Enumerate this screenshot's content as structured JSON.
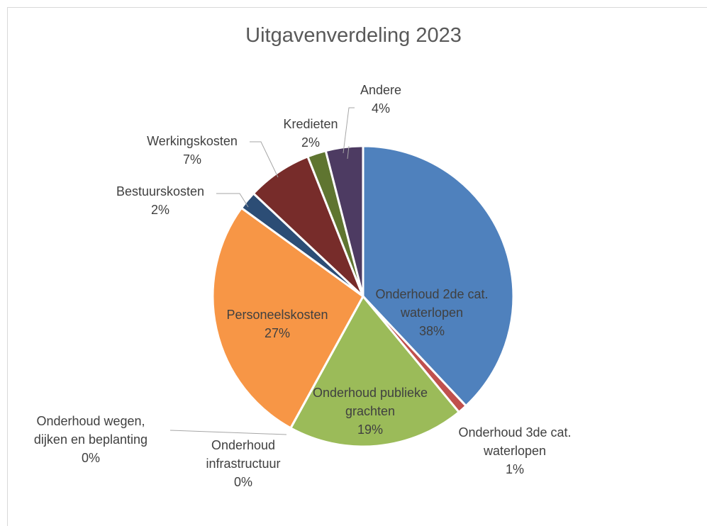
{
  "chart_data": {
    "type": "pie",
    "title": "Uitgavenverdeling 2023",
    "categories": [
      "Onderhoud 2de cat. waterlopen",
      "Onderhoud 3de cat. waterlopen",
      "Onderhoud publieke grachten",
      "Onderhoud infrastructuur",
      "Onderhoud wegen, dijken en beplanting",
      "Personeelskosten",
      "Bestuurskosten",
      "Werkingskosten",
      "Kredieten",
      "Andere"
    ],
    "values": [
      38,
      1,
      19,
      0,
      0,
      27,
      2,
      7,
      2,
      4
    ],
    "value_labels": [
      "38%",
      "1%",
      "19%",
      "0%",
      "0%",
      "27%",
      "2%",
      "7%",
      "2%",
      "4%"
    ],
    "colors": [
      "#4f81bd",
      "#c0504d",
      "#9bbb59",
      "#8064a2",
      "#4bacc6",
      "#f79646",
      "#2c4d75",
      "#772c2a",
      "#5f7530",
      "#4d3b62"
    ]
  }
}
